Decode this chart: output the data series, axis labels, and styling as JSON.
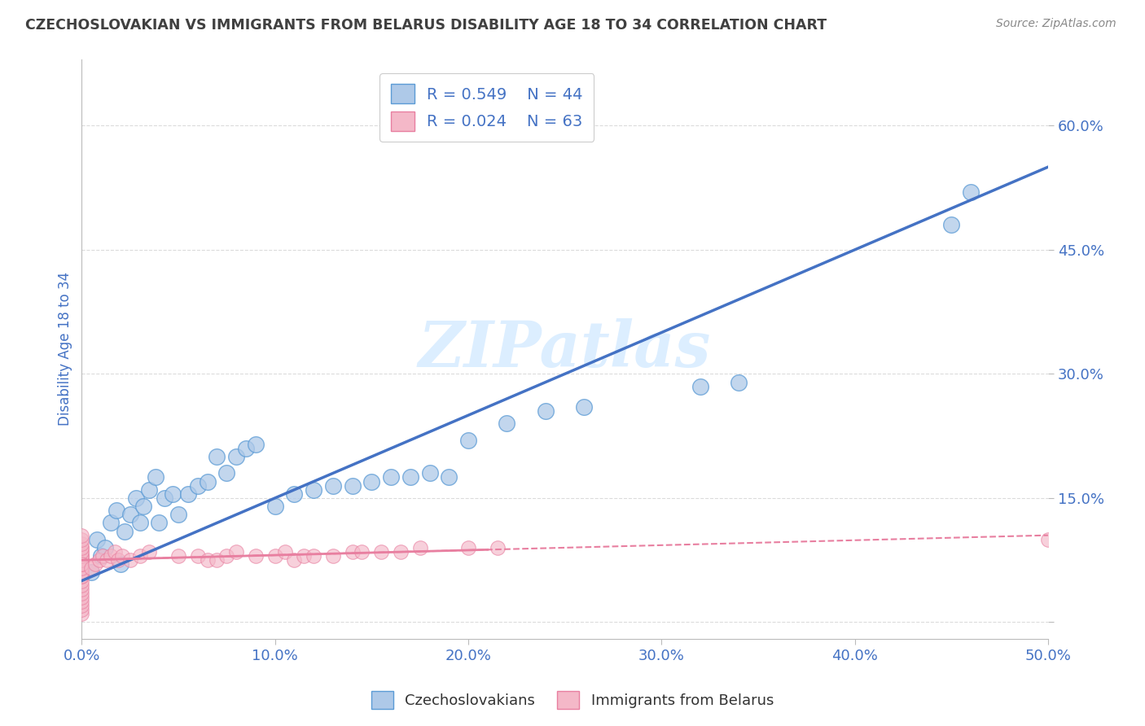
{
  "title": "CZECHOSLOVAKIAN VS IMMIGRANTS FROM BELARUS DISABILITY AGE 18 TO 34 CORRELATION CHART",
  "source": "Source: ZipAtlas.com",
  "ylabel": "Disability Age 18 to 34",
  "xlim": [
    0.0,
    0.5
  ],
  "ylim": [
    -0.02,
    0.68
  ],
  "xticks": [
    0.0,
    0.1,
    0.2,
    0.3,
    0.4,
    0.5
  ],
  "yticks": [
    0.0,
    0.15,
    0.3,
    0.45,
    0.6
  ],
  "ytick_labels": [
    "",
    "15.0%",
    "30.0%",
    "45.0%",
    "60.0%"
  ],
  "xtick_labels": [
    "0.0%",
    "10.0%",
    "20.0%",
    "30.0%",
    "40.0%",
    "50.0%"
  ],
  "legend_r1": "R = 0.549",
  "legend_n1": "N = 44",
  "legend_r2": "R = 0.024",
  "legend_n2": "N = 63",
  "blue_fill": "#aec9e8",
  "blue_edge": "#5b9bd5",
  "pink_fill": "#f4b8c8",
  "pink_edge": "#e87fa0",
  "blue_line_color": "#4472c4",
  "pink_line_color": "#e87fa0",
  "title_color": "#404040",
  "axis_tick_color": "#4472c4",
  "legend_text_color": "#4472c4",
  "watermark": "ZIPatlas",
  "watermark_color": "#dceeff",
  "czech_x": [
    0.005,
    0.008,
    0.01,
    0.012,
    0.015,
    0.018,
    0.02,
    0.022,
    0.025,
    0.028,
    0.03,
    0.032,
    0.035,
    0.038,
    0.04,
    0.043,
    0.047,
    0.05,
    0.055,
    0.06,
    0.065,
    0.07,
    0.075,
    0.08,
    0.085,
    0.09,
    0.1,
    0.11,
    0.12,
    0.13,
    0.14,
    0.15,
    0.16,
    0.17,
    0.18,
    0.19,
    0.2,
    0.22,
    0.24,
    0.26,
    0.32,
    0.34,
    0.45,
    0.46
  ],
  "czech_y": [
    0.06,
    0.1,
    0.08,
    0.09,
    0.12,
    0.135,
    0.07,
    0.11,
    0.13,
    0.15,
    0.12,
    0.14,
    0.16,
    0.175,
    0.12,
    0.15,
    0.155,
    0.13,
    0.155,
    0.165,
    0.17,
    0.2,
    0.18,
    0.2,
    0.21,
    0.215,
    0.14,
    0.155,
    0.16,
    0.165,
    0.165,
    0.17,
    0.175,
    0.175,
    0.18,
    0.175,
    0.22,
    0.24,
    0.255,
    0.26,
    0.285,
    0.29,
    0.48,
    0.52
  ],
  "belarus_x": [
    0.0,
    0.0,
    0.0,
    0.0,
    0.0,
    0.0,
    0.0,
    0.0,
    0.0,
    0.0,
    0.0,
    0.0,
    0.0,
    0.0,
    0.0,
    0.0,
    0.0,
    0.0,
    0.0,
    0.0,
    0.0,
    0.0,
    0.0,
    0.0,
    0.0,
    0.0,
    0.0,
    0.0,
    0.0,
    0.0,
    0.005,
    0.007,
    0.009,
    0.011,
    0.013,
    0.015,
    0.017,
    0.019,
    0.021,
    0.025,
    0.03,
    0.035,
    0.05,
    0.06,
    0.065,
    0.07,
    0.075,
    0.08,
    0.09,
    0.1,
    0.105,
    0.11,
    0.115,
    0.12,
    0.13,
    0.14,
    0.145,
    0.155,
    0.165,
    0.175,
    0.2,
    0.215,
    0.5
  ],
  "belarus_y": [
    0.01,
    0.015,
    0.02,
    0.025,
    0.03,
    0.035,
    0.04,
    0.045,
    0.05,
    0.055,
    0.06,
    0.065,
    0.07,
    0.075,
    0.08,
    0.08,
    0.085,
    0.09,
    0.055,
    0.06,
    0.065,
    0.07,
    0.075,
    0.08,
    0.085,
    0.09,
    0.095,
    0.1,
    0.105,
    0.07,
    0.065,
    0.07,
    0.075,
    0.08,
    0.075,
    0.08,
    0.085,
    0.075,
    0.08,
    0.075,
    0.08,
    0.085,
    0.08,
    0.08,
    0.075,
    0.075,
    0.08,
    0.085,
    0.08,
    0.08,
    0.085,
    0.075,
    0.08,
    0.08,
    0.08,
    0.085,
    0.085,
    0.085,
    0.085,
    0.09,
    0.09,
    0.09,
    0.1
  ],
  "background_color": "#ffffff",
  "grid_color": "#cccccc"
}
